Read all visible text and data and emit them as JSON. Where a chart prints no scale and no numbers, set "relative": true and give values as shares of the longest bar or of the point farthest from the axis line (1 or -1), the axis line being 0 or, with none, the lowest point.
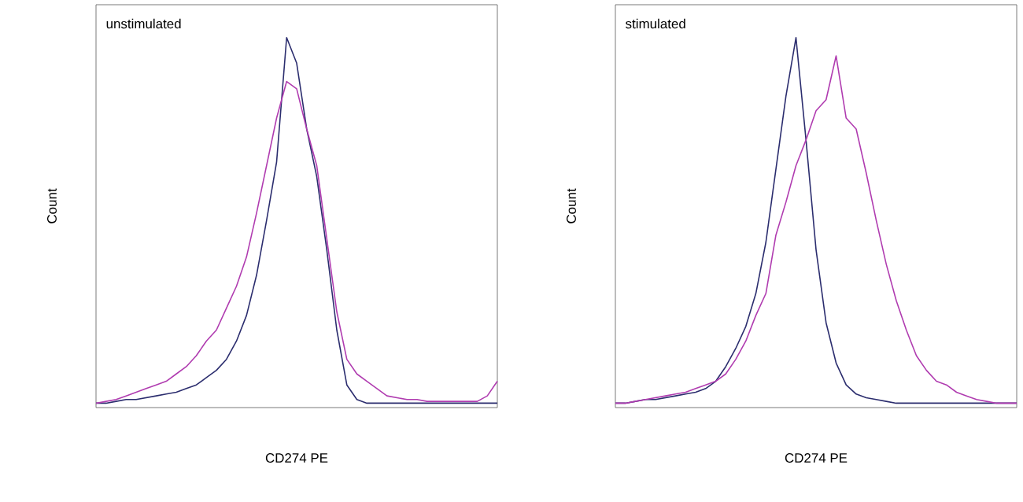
{
  "chart_data": [
    {
      "type": "line",
      "relative": true,
      "xlabel": "CD274 PE",
      "ylabel": "Count",
      "annotations": [
        "unstimulated"
      ],
      "marker": "none",
      "categories": [
        null,
        null,
        null,
        null,
        null,
        null,
        null,
        null,
        null,
        null,
        null,
        null,
        null,
        null,
        null,
        null,
        null,
        null,
        null,
        null,
        null,
        null,
        null,
        null,
        null,
        null,
        null,
        null,
        null,
        null,
        null,
        null,
        null,
        null,
        null,
        null,
        null,
        null,
        null,
        null,
        null
      ],
      "series": [
        {
          "color": "#2b2d6e",
          "values": [
            0,
            0,
            0.005,
            0.01,
            0.01,
            0.015,
            0.02,
            0.025,
            0.03,
            0.04,
            0.05,
            0.07,
            0.09,
            0.12,
            0.17,
            0.24,
            0.35,
            0.5,
            0.66,
            1.0,
            0.93,
            0.75,
            0.62,
            0.42,
            0.2,
            0.05,
            0.01,
            0,
            0,
            0,
            0,
            0,
            0,
            0,
            0,
            0,
            0,
            0,
            0,
            0,
            0
          ]
        },
        {
          "color": "#b03cb0",
          "values": [
            0,
            0.005,
            0.01,
            0.02,
            0.03,
            0.04,
            0.05,
            0.06,
            0.08,
            0.1,
            0.13,
            0.17,
            0.2,
            0.26,
            0.32,
            0.4,
            0.52,
            0.65,
            0.78,
            0.88,
            0.86,
            0.75,
            0.65,
            0.45,
            0.25,
            0.12,
            0.08,
            0.06,
            0.04,
            0.02,
            0.015,
            0.01,
            0.01,
            0.005,
            0.005,
            0.005,
            0.005,
            0.005,
            0.005,
            0.02,
            0.06
          ]
        }
      ]
    },
    {
      "type": "line",
      "relative": true,
      "xlabel": "CD274 PE",
      "ylabel": "Count",
      "annotations": [
        "stimulated"
      ],
      "marker": "none",
      "categories": [
        null,
        null,
        null,
        null,
        null,
        null,
        null,
        null,
        null,
        null,
        null,
        null,
        null,
        null,
        null,
        null,
        null,
        null,
        null,
        null,
        null,
        null,
        null,
        null,
        null,
        null,
        null,
        null,
        null,
        null,
        null,
        null,
        null,
        null,
        null,
        null,
        null,
        null,
        null,
        null,
        null
      ],
      "series": [
        {
          "color": "#2b2d6e",
          "values": [
            0,
            0,
            0.005,
            0.01,
            0.01,
            0.015,
            0.02,
            0.025,
            0.03,
            0.04,
            0.06,
            0.1,
            0.15,
            0.21,
            0.3,
            0.44,
            0.64,
            0.84,
            1.0,
            0.72,
            0.42,
            0.22,
            0.11,
            0.05,
            0.025,
            0.015,
            0.01,
            0.005,
            0,
            0,
            0,
            0,
            0,
            0,
            0,
            0,
            0,
            0,
            0,
            0,
            0
          ]
        },
        {
          "color": "#b03cb0",
          "values": [
            0,
            0,
            0.005,
            0.01,
            0.015,
            0.02,
            0.025,
            0.03,
            0.04,
            0.05,
            0.06,
            0.08,
            0.12,
            0.17,
            0.24,
            0.3,
            0.46,
            0.55,
            0.65,
            0.72,
            0.8,
            0.83,
            0.95,
            0.78,
            0.75,
            0.63,
            0.5,
            0.38,
            0.28,
            0.2,
            0.13,
            0.09,
            0.06,
            0.05,
            0.03,
            0.02,
            0.01,
            0.005,
            0,
            0,
            0
          ]
        }
      ]
    }
  ]
}
